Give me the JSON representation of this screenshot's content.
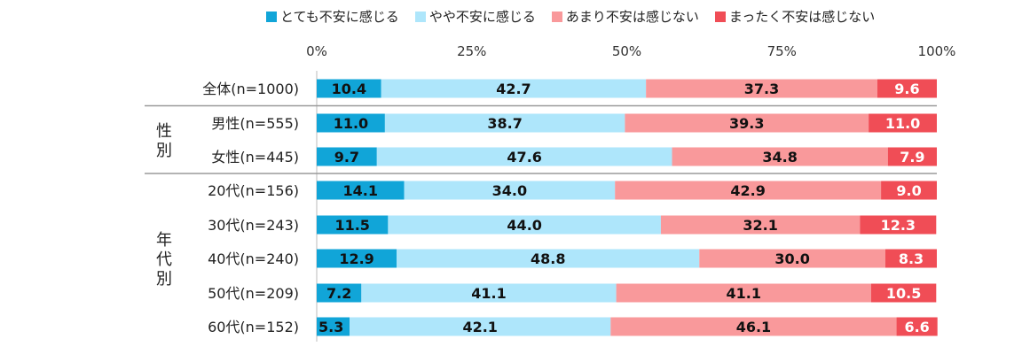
{
  "chart_data": {
    "type": "bar",
    "orientation": "horizontal",
    "stacked": true,
    "percent_axis": true,
    "xlim": [
      0,
      100
    ],
    "x_ticks": [
      "0%",
      "25%",
      "50%",
      "75%",
      "100%"
    ],
    "legend_position": "top",
    "categories": [
      "全体(n=1000)",
      "男性(n=555)",
      "女性(n=445)",
      "20代(n=156)",
      "30代(n=243)",
      "40代(n=240)",
      "50代(n=209)",
      "60代(n=152)"
    ],
    "groups": [
      {
        "label": "性別",
        "categories": [
          "男性(n=555)",
          "女性(n=445)"
        ]
      },
      {
        "label": "年代別",
        "categories": [
          "20代(n=156)",
          "30代(n=243)",
          "40代(n=240)",
          "50代(n=209)",
          "60代(n=152)"
        ]
      }
    ],
    "series": [
      {
        "name": "とても不安に感じる",
        "color": "#11a5d8",
        "values": [
          10.4,
          11.0,
          9.7,
          14.1,
          11.5,
          12.9,
          7.2,
          5.3
        ]
      },
      {
        "name": "やや不安に感じる",
        "color": "#aee6fb",
        "values": [
          42.7,
          38.7,
          47.6,
          34.0,
          44.0,
          48.8,
          41.1,
          42.1
        ]
      },
      {
        "name": "あまり不安は感じない",
        "color": "#f9999b",
        "values": [
          37.3,
          39.3,
          34.8,
          42.9,
          32.1,
          30.0,
          41.1,
          46.1
        ]
      },
      {
        "name": "まったく不安は感じない",
        "color": "#f04d56",
        "values": [
          9.6,
          11.0,
          7.9,
          9.0,
          12.3,
          8.3,
          10.5,
          6.6
        ]
      }
    ]
  }
}
